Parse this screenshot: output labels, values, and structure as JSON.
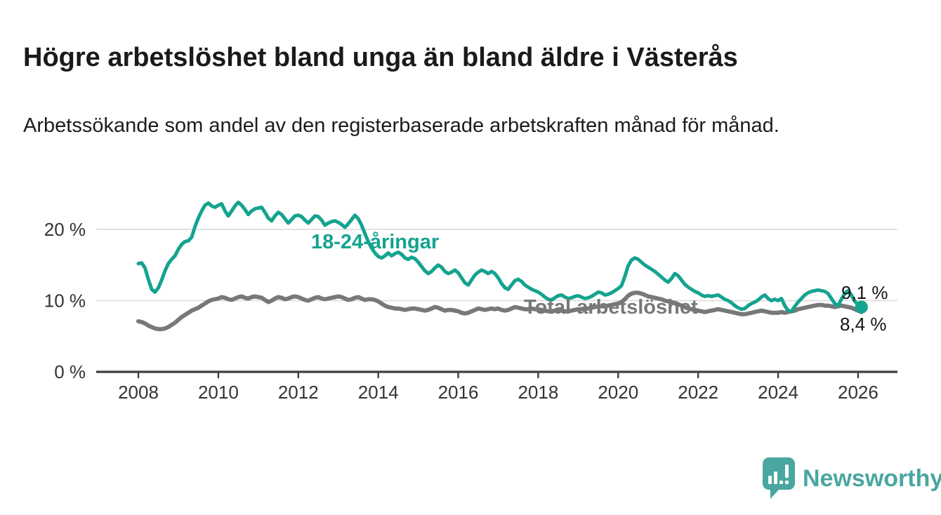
{
  "header": {
    "title": "Högre arbetslöshet bland unga än bland äldre i Västerås",
    "subtitle": "Arbetssökande som andel av den registerbaserade arbetskraften månad för månad."
  },
  "footer": {
    "brand": "Newsworthy"
  },
  "chart_data": {
    "type": "line",
    "frequency": "monthly",
    "start": {
      "year": 2008,
      "month": 1
    },
    "end": {
      "year": 2026,
      "month": 2
    },
    "xlabel": "",
    "ylabel": "",
    "ylim": [
      0,
      25
    ],
    "grid": "horizontal",
    "legend": "inline-labels",
    "colors": {
      "grid": "#d9d9d9",
      "axis": "#3f3f3f",
      "tick_text": "#333333"
    },
    "x_ticks": [
      2008,
      2010,
      2012,
      2014,
      2016,
      2018,
      2020,
      2022,
      2024,
      2026
    ],
    "y_ticks": [
      {
        "value": 0,
        "label": "0 %"
      },
      {
        "value": 10,
        "label": "10 %"
      },
      {
        "value": 20,
        "label": "20 %"
      }
    ],
    "series": [
      {
        "name": "18-24-åringar",
        "color": "#14a38f",
        "stroke_width": 5,
        "end_label": "9,1 %",
        "end_value": 9.1,
        "end_dot": true,
        "values": [
          15.2,
          15.3,
          14.6,
          13.0,
          11.6,
          11.2,
          11.8,
          12.9,
          14.2,
          15.2,
          15.8,
          16.3,
          17.2,
          17.9,
          18.3,
          18.4,
          18.9,
          20.4,
          21.6,
          22.6,
          23.4,
          23.7,
          23.3,
          23.1,
          23.4,
          23.6,
          22.6,
          21.9,
          22.6,
          23.3,
          23.8,
          23.4,
          22.8,
          22.1,
          22.6,
          22.9,
          23.0,
          23.1,
          22.4,
          21.6,
          21.2,
          21.9,
          22.4,
          22.1,
          21.5,
          20.9,
          21.4,
          21.9,
          22.0,
          21.8,
          21.3,
          20.9,
          21.4,
          21.9,
          21.8,
          21.3,
          20.6,
          20.9,
          21.1,
          21.2,
          21.0,
          20.7,
          20.3,
          20.8,
          21.4,
          22.0,
          21.5,
          20.6,
          19.4,
          18.3,
          17.4,
          16.7,
          16.2,
          16.0,
          16.3,
          16.7,
          16.3,
          16.6,
          16.8,
          16.5,
          16.0,
          15.8,
          16.1,
          15.9,
          15.4,
          14.8,
          14.2,
          13.8,
          14.1,
          14.6,
          15.0,
          14.7,
          14.1,
          13.8,
          14.0,
          14.3,
          13.9,
          13.2,
          12.5,
          12.2,
          12.9,
          13.6,
          14.0,
          14.3,
          14.1,
          13.8,
          14.1,
          13.8,
          13.2,
          12.4,
          11.8,
          11.6,
          12.2,
          12.8,
          13.0,
          12.7,
          12.2,
          11.9,
          11.6,
          11.4,
          11.2,
          10.9,
          10.5,
          10.2,
          10.1,
          10.4,
          10.7,
          10.8,
          10.5,
          10.3,
          10.4,
          10.6,
          10.7,
          10.5,
          10.3,
          10.4,
          10.6,
          10.9,
          11.2,
          11.1,
          10.8,
          10.9,
          11.1,
          11.4,
          11.7,
          12.1,
          13.4,
          14.9,
          15.7,
          16.0,
          15.8,
          15.4,
          15.0,
          14.7,
          14.4,
          14.1,
          13.7,
          13.3,
          12.9,
          12.6,
          13.1,
          13.8,
          13.5,
          12.9,
          12.3,
          11.9,
          11.6,
          11.3,
          11.1,
          10.8,
          10.6,
          10.7,
          10.6,
          10.7,
          10.8,
          10.5,
          10.2,
          10.0,
          9.7,
          9.3,
          9.0,
          8.8,
          8.9,
          9.3,
          9.6,
          9.8,
          10.1,
          10.5,
          10.8,
          10.3,
          10.0,
          10.2,
          10.0,
          10.3,
          9.3,
          8.6,
          8.5,
          9.2,
          9.8,
          10.3,
          10.8,
          11.1,
          11.3,
          11.4,
          11.5,
          11.4,
          11.3,
          11.0,
          10.3,
          9.6,
          9.3,
          10.2,
          11.0,
          11.4,
          10.8,
          9.9,
          9.4,
          9.1
        ]
      },
      {
        "name": "Total arbetslöshet",
        "color": "#77787a",
        "stroke_width": 6,
        "end_label": "8,4 %",
        "end_value": 8.4,
        "end_dot": false,
        "values": [
          7.1,
          7.0,
          6.8,
          6.5,
          6.3,
          6.1,
          6.0,
          6.0,
          6.1,
          6.3,
          6.6,
          6.9,
          7.3,
          7.7,
          8.0,
          8.3,
          8.6,
          8.8,
          9.0,
          9.3,
          9.6,
          9.9,
          10.1,
          10.2,
          10.3,
          10.5,
          10.4,
          10.2,
          10.1,
          10.3,
          10.5,
          10.6,
          10.4,
          10.3,
          10.5,
          10.6,
          10.5,
          10.4,
          10.1,
          9.8,
          10.0,
          10.3,
          10.5,
          10.4,
          10.2,
          10.3,
          10.5,
          10.6,
          10.5,
          10.3,
          10.1,
          10.0,
          10.2,
          10.4,
          10.5,
          10.3,
          10.2,
          10.3,
          10.4,
          10.5,
          10.6,
          10.5,
          10.3,
          10.1,
          10.2,
          10.4,
          10.5,
          10.3,
          10.1,
          10.2,
          10.2,
          10.1,
          9.9,
          9.6,
          9.3,
          9.1,
          9.0,
          8.9,
          8.9,
          8.8,
          8.7,
          8.8,
          8.9,
          8.9,
          8.8,
          8.7,
          8.6,
          8.7,
          8.9,
          9.1,
          9.0,
          8.8,
          8.6,
          8.7,
          8.7,
          8.6,
          8.5,
          8.3,
          8.2,
          8.3,
          8.5,
          8.7,
          8.9,
          8.8,
          8.7,
          8.8,
          8.9,
          8.8,
          8.9,
          8.7,
          8.6,
          8.7,
          8.9,
          9.1,
          9.0,
          8.9,
          8.8,
          8.8,
          8.9,
          8.8,
          8.8,
          8.7,
          8.6,
          8.5,
          8.5,
          8.6,
          8.7,
          8.6,
          8.5,
          8.5,
          8.6,
          8.7,
          8.8,
          8.8,
          8.9,
          8.9,
          9.0,
          9.1,
          9.2,
          9.2,
          9.2,
          9.3,
          9.4,
          9.5,
          9.6,
          9.8,
          10.2,
          10.7,
          11.0,
          11.1,
          11.1,
          11.0,
          10.8,
          10.6,
          10.5,
          10.4,
          10.3,
          10.2,
          10.0,
          9.9,
          9.8,
          9.7,
          9.5,
          9.3,
          9.1,
          8.9,
          8.8,
          8.7,
          8.6,
          8.5,
          8.4,
          8.5,
          8.6,
          8.7,
          8.8,
          8.7,
          8.6,
          8.5,
          8.4,
          8.3,
          8.2,
          8.1,
          8.1,
          8.2,
          8.3,
          8.4,
          8.5,
          8.6,
          8.5,
          8.4,
          8.3,
          8.3,
          8.3,
          8.4,
          8.3,
          8.4,
          8.5,
          8.6,
          8.8,
          8.9,
          9.0,
          9.1,
          9.2,
          9.3,
          9.4,
          9.4,
          9.3,
          9.3,
          9.2,
          9.1,
          9.2,
          9.3,
          9.2,
          9.1,
          9.0,
          8.8,
          8.6,
          8.4
        ]
      }
    ]
  }
}
